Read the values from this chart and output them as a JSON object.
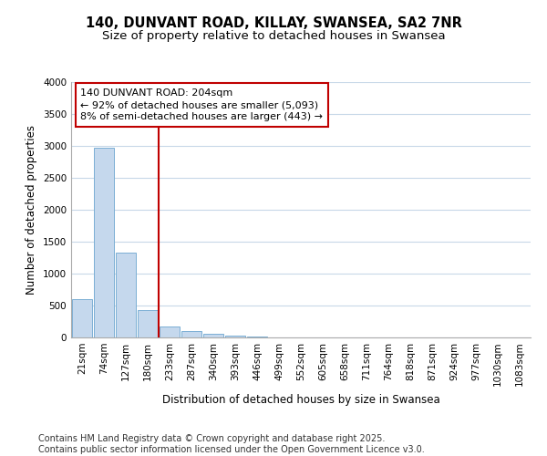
{
  "title": "140, DUNVANT ROAD, KILLAY, SWANSEA, SA2 7NR",
  "subtitle": "Size of property relative to detached houses in Swansea",
  "xlabel": "Distribution of detached houses by size in Swansea",
  "ylabel": "Number of detached properties",
  "categories": [
    "21sqm",
    "74sqm",
    "127sqm",
    "180sqm",
    "233sqm",
    "287sqm",
    "340sqm",
    "393sqm",
    "446sqm",
    "499sqm",
    "552sqm",
    "605sqm",
    "658sqm",
    "711sqm",
    "764sqm",
    "818sqm",
    "871sqm",
    "924sqm",
    "977sqm",
    "1030sqm",
    "1083sqm"
  ],
  "values": [
    600,
    2970,
    1330,
    430,
    175,
    95,
    55,
    35,
    20,
    5,
    0,
    0,
    0,
    0,
    0,
    0,
    0,
    0,
    0,
    0,
    0
  ],
  "bar_color": "#c5d8ed",
  "bar_edge_color": "#7bafd4",
  "vline_color": "#c00000",
  "annotation_line1": "140 DUNVANT ROAD: 204sqm",
  "annotation_line2": "← 92% of detached houses are smaller (5,093)",
  "annotation_line3": "8% of semi-detached houses are larger (443) →",
  "annotation_box_color": "#c00000",
  "ylim": [
    0,
    4000
  ],
  "yticks": [
    0,
    500,
    1000,
    1500,
    2000,
    2500,
    3000,
    3500,
    4000
  ],
  "background_color": "#ffffff",
  "plot_bg_color": "#ffffff",
  "grid_color": "#c8d8e8",
  "footer_text": "Contains HM Land Registry data © Crown copyright and database right 2025.\nContains public sector information licensed under the Open Government Licence v3.0.",
  "title_fontsize": 10.5,
  "subtitle_fontsize": 9.5,
  "axis_label_fontsize": 8.5,
  "tick_fontsize": 7.5,
  "annotation_fontsize": 8,
  "footer_fontsize": 7
}
